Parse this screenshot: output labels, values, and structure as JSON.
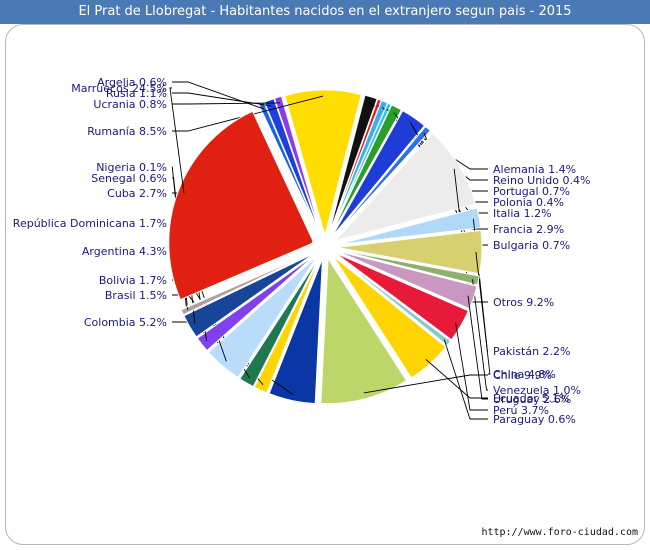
{
  "title": "El Prat de Llobregat - Habitantes nacidos en el extranjero segun pais - 2015",
  "source": "http://www.foro-ciudad.com",
  "chart_data": {
    "type": "pie",
    "title": "El Prat de Llobregat - Habitantes nacidos en el extranjero segun pais - 2015",
    "unit": "%",
    "slices": [
      {
        "label": "Argelia",
        "value": 0.6,
        "value_text": "0.6%",
        "color": "#1565e0"
      },
      {
        "label": "Rusia",
        "value": 1.1,
        "value_text": "1.1%",
        "color": "#1e40e0"
      },
      {
        "label": "Ucrania",
        "value": 0.8,
        "value_text": "0.8%",
        "color": "#8a3cf0"
      },
      {
        "label": "Rumanía",
        "value": 8.5,
        "value_text": "8.5%",
        "color": "#ffdd00"
      },
      {
        "label": "Alemania",
        "value": 1.4,
        "value_text": "1.4%",
        "color": "#111111"
      },
      {
        "label": "Reino Unido",
        "value": 0.4,
        "value_text": "0.4%",
        "color": "#e02020"
      },
      {
        "label": "Portugal",
        "value": 0.7,
        "value_text": "0.7%",
        "color": "#38b0f0"
      },
      {
        "label": "Polonia",
        "value": 0.4,
        "value_text": "0.4%",
        "color": "#1ec8e8"
      },
      {
        "label": "Italia",
        "value": 1.2,
        "value_text": "1.2%",
        "color": "#28a028"
      },
      {
        "label": "Francia",
        "value": 2.9,
        "value_text": "2.9%",
        "color": "#1e3cd6"
      },
      {
        "label": "Bulgaria",
        "value": 0.7,
        "value_text": "0.7%",
        "color": "#2a70e6"
      },
      {
        "label": "Otros",
        "value": 9.2,
        "value_text": "9.2%",
        "color": "#ececec"
      },
      {
        "label": "Pakistán",
        "value": 2.2,
        "value_text": "2.2%",
        "color": "#b0d8f8"
      },
      {
        "label": "China",
        "value": 4.8,
        "value_text": "4.8%",
        "color": "#d8d070"
      },
      {
        "label": "Venezuela",
        "value": 1.0,
        "value_text": "1.0%",
        "color": "#90b070"
      },
      {
        "label": "Uruguay",
        "value": 2.6,
        "value_text": "2.6%",
        "color": "#c898c0"
      },
      {
        "label": "Perú",
        "value": 3.7,
        "value_text": "3.7%",
        "color": "#e81a3a"
      },
      {
        "label": "Paraguay",
        "value": 0.6,
        "value_text": "0.6%",
        "color": "#88c8c8"
      },
      {
        "label": "Ecuador",
        "value": 5.1,
        "value_text": "5.1%",
        "color": "#ffd400"
      },
      {
        "label": "Chile",
        "value": 9.9,
        "value_text": "9.9%",
        "color": "#bcd66a"
      },
      {
        "label": "Colombia",
        "value": 5.2,
        "value_text": "5.2%",
        "color": "#0a36a6"
      },
      {
        "label": "Brasil",
        "value": 1.5,
        "value_text": "1.5%",
        "color": "#ffd400"
      },
      {
        "label": "Bolivia",
        "value": 1.7,
        "value_text": "1.7%",
        "color": "#1e7850"
      },
      {
        "label": "Argentina",
        "value": 4.3,
        "value_text": "4.3%",
        "color": "#b8dcfa"
      },
      {
        "label": "República Dominicana",
        "value": 1.7,
        "value_text": "1.7%",
        "color": "#8040ee"
      },
      {
        "label": "Cuba",
        "value": 2.7,
        "value_text": "2.7%",
        "color": "#174598"
      },
      {
        "label": "Senegal",
        "value": 0.6,
        "value_text": "0.6%",
        "color": "#b0a0a0"
      },
      {
        "label": "Nigeria",
        "value": 0.1,
        "value_text": "0.1%",
        "color": "#9030f0"
      },
      {
        "label": "Marruecos",
        "value": 24.5,
        "value_text": "24.5%",
        "color": "#e02010"
      }
    ]
  }
}
